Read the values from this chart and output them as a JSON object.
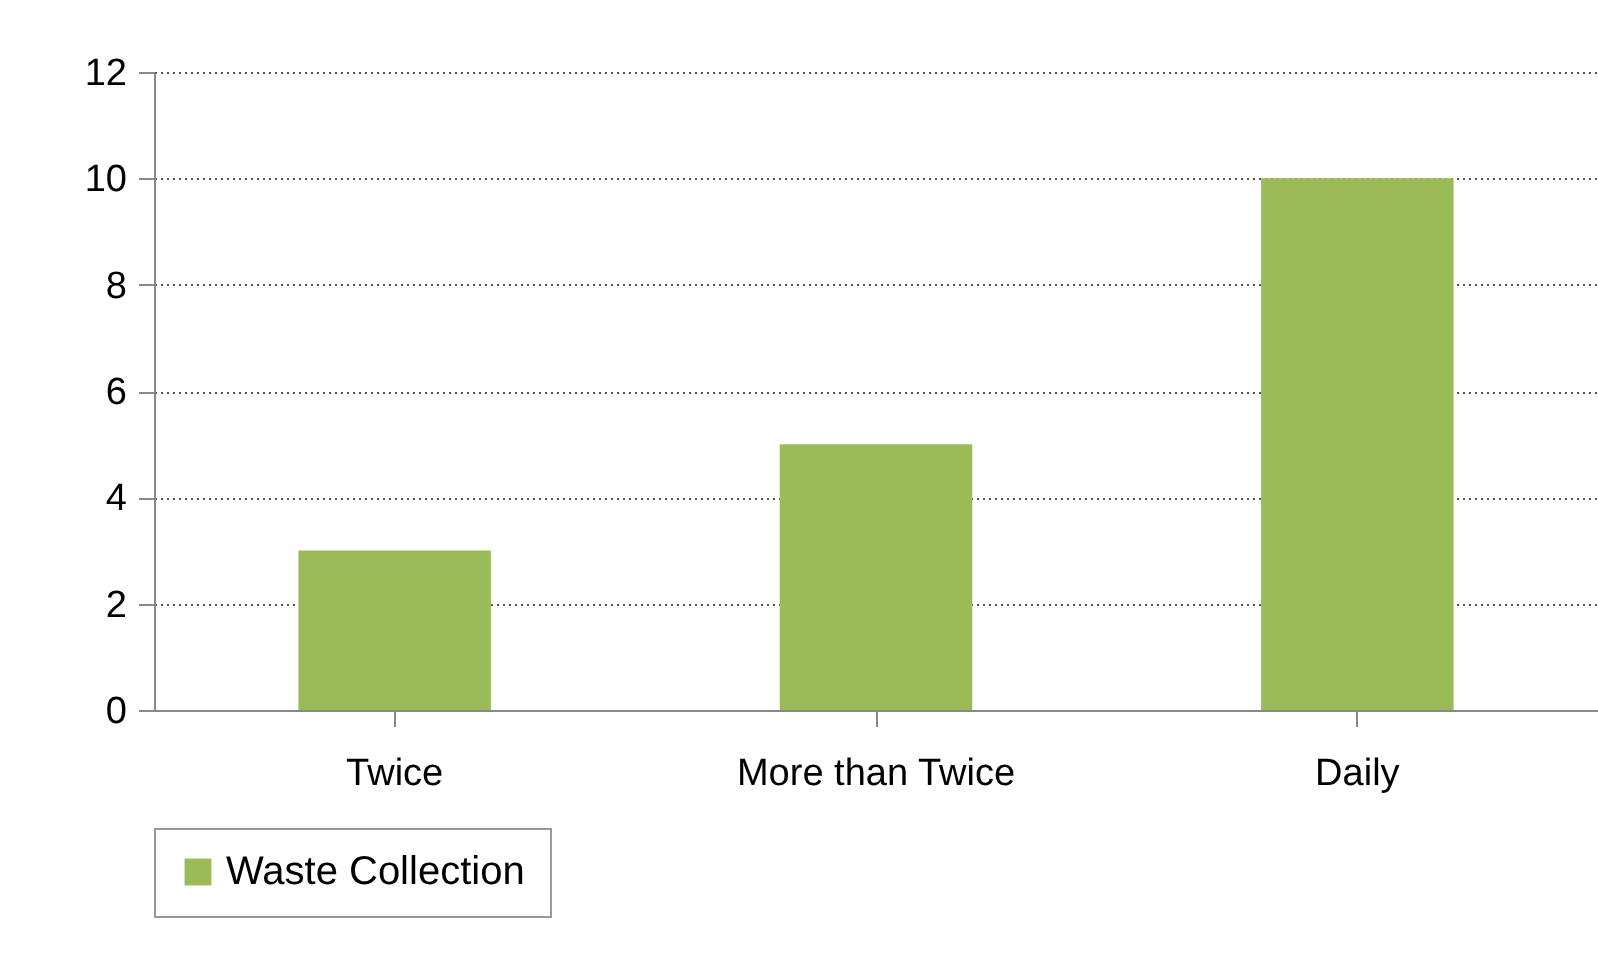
{
  "chart_data": {
    "type": "bar",
    "categories": [
      "Twice",
      "More than Twice",
      "Daily"
    ],
    "series": [
      {
        "name": "Waste Collection",
        "color": "#9bbb59",
        "values": [
          3,
          5,
          10
        ]
      }
    ],
    "ylim": [
      0,
      12
    ],
    "yticks": [
      0,
      2,
      4,
      6,
      8,
      10,
      12
    ],
    "grid": "y",
    "legend": "bottom"
  }
}
